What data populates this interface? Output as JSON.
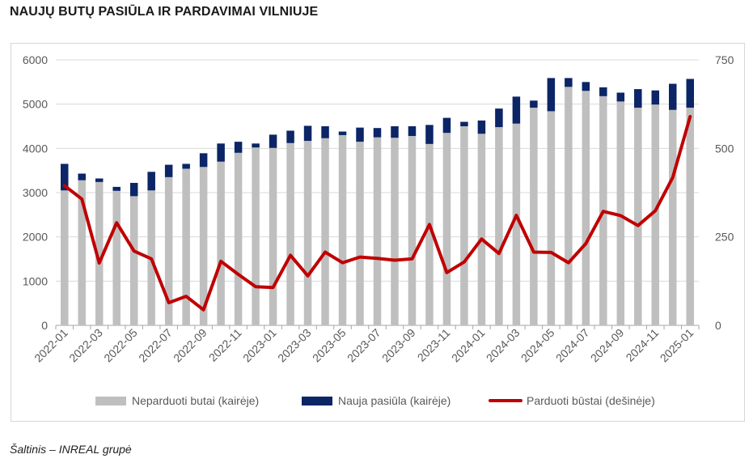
{
  "title": "NAUJŲ BUTŲ PASIŪLA IR PARDAVIMAI VILNIUJE",
  "source": "Šaltinis – INREAL grupė",
  "colors": {
    "unsold": "#bfbfbf",
    "new_supply": "#0b2566",
    "sold": "#c00000",
    "grid": "#d9d9d9",
    "text": "#595959"
  },
  "chart_data": {
    "type": "bar",
    "stacked": true,
    "months": [
      "2022-01",
      "2022-02",
      "2022-03",
      "2022-04",
      "2022-05",
      "2022-06",
      "2022-07",
      "2022-08",
      "2022-09",
      "2022-10",
      "2022-11",
      "2022-12",
      "2023-01",
      "2023-02",
      "2023-03",
      "2023-04",
      "2023-05",
      "2023-06",
      "2023-07",
      "2023-08",
      "2023-09",
      "2023-10",
      "2023-11",
      "2023-12",
      "2024-01",
      "2024-02",
      "2024-03",
      "2024-04",
      "2024-05",
      "2024-06",
      "2024-07",
      "2024-08",
      "2024-09",
      "2024-10",
      "2024-11",
      "2024-12",
      "2025-01"
    ],
    "x_tick_labels": [
      "2022-01",
      "2022-03",
      "2022-05",
      "2022-07",
      "2022-09",
      "2022-11",
      "2023-01",
      "2023-03",
      "2023-05",
      "2023-07",
      "2023-09",
      "2023-11",
      "2024-01",
      "2024-03",
      "2024-05",
      "2024-07",
      "2024-09",
      "2024-11",
      "2025-01"
    ],
    "series": [
      {
        "name": "Neparduoti butai (kairėje)",
        "axis": "left",
        "kind": "bar",
        "values": [
          3050,
          3280,
          3240,
          3040,
          2920,
          3050,
          3350,
          3540,
          3580,
          3700,
          3900,
          4020,
          4010,
          4120,
          4170,
          4230,
          4300,
          4150,
          4250,
          4240,
          4280,
          4100,
          4350,
          4500,
          4330,
          4480,
          4560,
          4920,
          4840,
          5390,
          5300,
          5180,
          5060,
          4920,
          4990,
          4870,
          4920
        ]
      },
      {
        "name": "Nauja pasiūla (kairėje)",
        "axis": "left",
        "kind": "bar",
        "values": [
          600,
          150,
          80,
          90,
          300,
          420,
          280,
          110,
          310,
          410,
          250,
          90,
          300,
          280,
          340,
          270,
          80,
          320,
          210,
          260,
          220,
          430,
          340,
          100,
          300,
          420,
          610,
          160,
          750,
          200,
          200,
          200,
          200,
          420,
          320,
          590,
          650
        ]
      },
      {
        "name": "Parduoti būstai (dešinėje)",
        "axis": "right",
        "kind": "line",
        "values": [
          395,
          357,
          176,
          290,
          210,
          188,
          64,
          82,
          44,
          181,
          144,
          109,
          107,
          198,
          140,
          207,
          177,
          193,
          189,
          184,
          188,
          285,
          149,
          179,
          244,
          203,
          311,
          207,
          206,
          177,
          231,
          322,
          310,
          282,
          324,
          418,
          590
        ]
      }
    ],
    "y_left": {
      "min": 0,
      "max": 6000,
      "ticks": [
        0,
        1000,
        2000,
        3000,
        4000,
        5000,
        6000
      ]
    },
    "y_right": {
      "min": 0,
      "max": 750,
      "ticks": [
        0,
        250,
        500,
        750
      ]
    },
    "legend": [
      {
        "label": "Neparduoti butai (kairėje)",
        "kind": "bar"
      },
      {
        "label": "Nauja pasiūla (kairėje)",
        "kind": "bar"
      },
      {
        "label": "Parduoti būstai (dešinėje)",
        "kind": "line"
      }
    ],
    "legend_position": "bottom",
    "grid": true
  }
}
